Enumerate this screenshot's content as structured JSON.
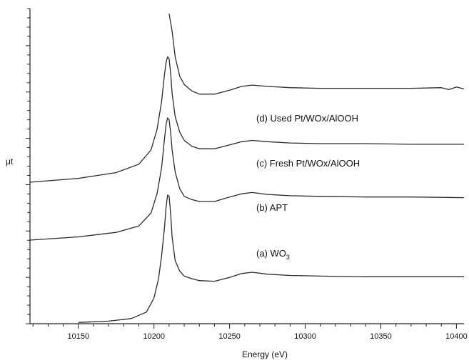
{
  "chart_data": {
    "type": "line",
    "xlabel": "Energy (eV)",
    "ylabel": "μt",
    "xlim": [
      10118,
      10405
    ],
    "ylim": [
      0,
      4.9
    ],
    "x_ticks": [
      10150,
      10200,
      10250,
      10300,
      10350,
      10400
    ],
    "y_ticks_shown": false,
    "grid": false,
    "series": [
      {
        "name": "(a) WO",
        "name_subscript": "3",
        "x": [
          10150,
          10170,
          10185,
          10195,
          10200,
          10203,
          10205,
          10207,
          10208,
          10209,
          10210,
          10211,
          10212,
          10214,
          10217,
          10220,
          10225,
          10230,
          10240,
          10250,
          10258,
          10265,
          10275,
          10290,
          10310,
          10340,
          10370,
          10405
        ],
        "values": [
          0.02,
          0.04,
          0.08,
          0.18,
          0.4,
          0.7,
          1.05,
          1.5,
          1.82,
          2.0,
          1.98,
          1.72,
          1.35,
          0.98,
          0.82,
          0.74,
          0.7,
          0.67,
          0.66,
          0.72,
          0.78,
          0.8,
          0.77,
          0.75,
          0.74,
          0.73,
          0.73,
          0.73
        ]
      },
      {
        "name": "(b) APT",
        "x": [
          10118,
          10150,
          10175,
          10190,
          10198,
          10202,
          10205,
          10207,
          10208,
          10209,
          10210,
          10211,
          10212,
          10214,
          10217,
          10220,
          10225,
          10230,
          10240,
          10250,
          10258,
          10265,
          10275,
          10290,
          10310,
          10340,
          10370,
          10405
        ],
        "values": [
          1.3,
          1.35,
          1.42,
          1.52,
          1.72,
          2.02,
          2.42,
          2.88,
          3.1,
          3.2,
          3.17,
          2.98,
          2.7,
          2.36,
          2.1,
          1.98,
          1.93,
          1.9,
          1.9,
          1.97,
          2.02,
          2.04,
          2.01,
          1.99,
          1.98,
          1.97,
          1.97,
          1.96
        ]
      },
      {
        "name": "(c) Fresh Pt/WOx/AlOOH",
        "x": [
          10118,
          10150,
          10175,
          10190,
          10198,
          10202,
          10205,
          10207,
          10208,
          10209,
          10210,
          10211,
          10212,
          10214,
          10217,
          10220,
          10225,
          10230,
          10240,
          10250,
          10258,
          10265,
          10275,
          10290,
          10310,
          10340,
          10370,
          10405
        ],
        "values": [
          2.2,
          2.26,
          2.35,
          2.48,
          2.7,
          3.02,
          3.45,
          3.88,
          4.07,
          4.15,
          4.12,
          3.9,
          3.58,
          3.22,
          2.98,
          2.85,
          2.76,
          2.72,
          2.72,
          2.78,
          2.83,
          2.85,
          2.83,
          2.81,
          2.8,
          2.8,
          2.79,
          2.79
        ]
      },
      {
        "name": "(d) Used Pt/WOx/AlOOH",
        "x": [
          10210,
          10212,
          10214,
          10217,
          10220,
          10225,
          10230,
          10240,
          10250,
          10258,
          10265,
          10275,
          10290,
          10310,
          10340,
          10370,
          10390,
          10395,
          10400,
          10405
        ],
        "values": [
          4.82,
          4.55,
          4.15,
          3.85,
          3.72,
          3.62,
          3.57,
          3.57,
          3.63,
          3.69,
          3.71,
          3.69,
          3.67,
          3.66,
          3.66,
          3.66,
          3.67,
          3.64,
          3.68,
          3.65
        ]
      }
    ]
  }
}
